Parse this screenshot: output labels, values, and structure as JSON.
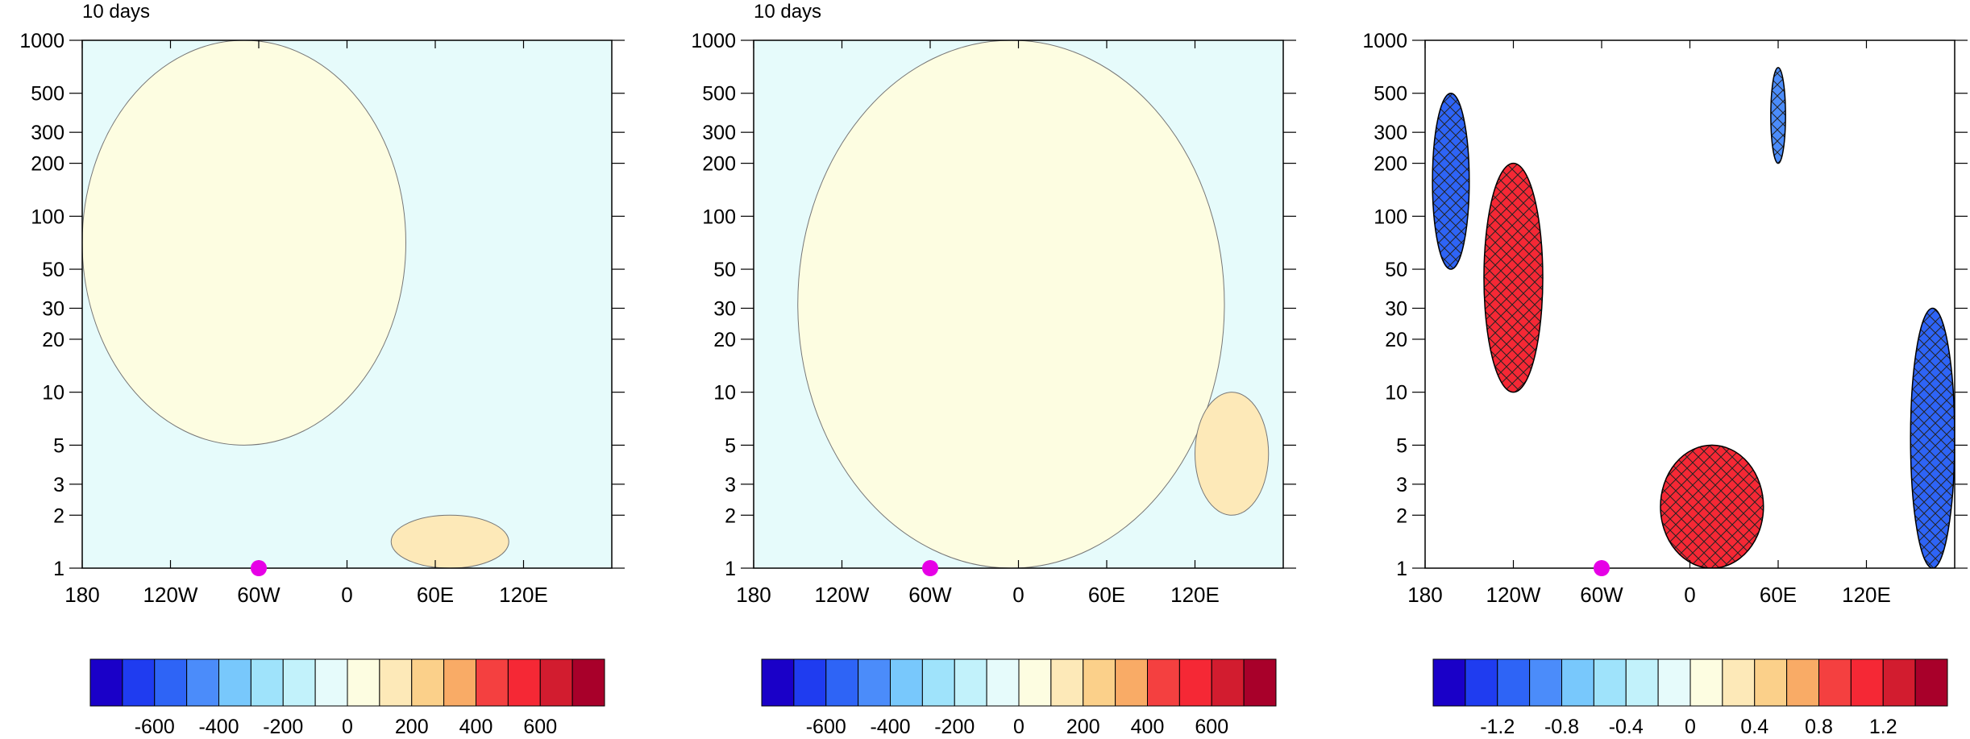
{
  "colors": {
    "levels": [
      "#1a00c8",
      "#1f3cf0",
      "#2e64f6",
      "#4b8cfa",
      "#78c8fc",
      "#9fe3fb",
      "#c2f2fb",
      "#e6fbfb",
      "#fdfde1",
      "#fde9b8",
      "#fbd08a",
      "#f9ab66",
      "#f44040",
      "#f52835",
      "#d21c2f",
      "#a8002a"
    ],
    "marker": "#e600e6",
    "contour": "#777777"
  },
  "chart_data": [
    {
      "type": "heatmap",
      "title": "10 days",
      "xticks": [
        "180",
        "120W",
        "60W",
        "0",
        "60E",
        "120E"
      ],
      "yticks": [
        "1",
        "2",
        "3",
        "5",
        "10",
        "20",
        "30",
        "50",
        "100",
        "200",
        "300",
        "500",
        "1000"
      ],
      "xrange": [
        -180,
        180
      ],
      "yrange": [
        1000,
        1
      ],
      "yscale": "log",
      "colorbar": {
        "levels": [
          -700,
          -600,
          -500,
          -400,
          -300,
          -200,
          -100,
          0,
          100,
          200,
          300,
          400,
          500,
          600,
          700
        ],
        "labels": [
          "-600",
          "-400",
          "-200",
          "0",
          "200",
          "400",
          "600"
        ]
      },
      "marker": {
        "lon": -60,
        "pressure": 1000
      },
      "regions": [
        {
          "value": -50,
          "sign": "negative",
          "lon": [
            -180,
            180
          ],
          "p": [
            1000,
            1
          ]
        },
        {
          "value": 50,
          "sign": "positive",
          "lon": [
            -180,
            40
          ],
          "p": [
            1000,
            5
          ]
        },
        {
          "value": 150,
          "sign": "positive",
          "lon": [
            30,
            110
          ],
          "p": [
            2,
            1
          ]
        }
      ]
    },
    {
      "type": "heatmap",
      "title": "10 days",
      "xticks": [
        "180",
        "120W",
        "60W",
        "0",
        "60E",
        "120E"
      ],
      "yticks": [
        "1",
        "2",
        "3",
        "5",
        "10",
        "20",
        "30",
        "50",
        "100",
        "200",
        "300",
        "500",
        "1000"
      ],
      "xrange": [
        -180,
        180
      ],
      "yrange": [
        1000,
        1
      ],
      "yscale": "log",
      "colorbar": {
        "levels": [
          -700,
          -600,
          -500,
          -400,
          -300,
          -200,
          -100,
          0,
          100,
          200,
          300,
          400,
          500,
          600,
          700
        ],
        "labels": [
          "-600",
          "-400",
          "-200",
          "0",
          "200",
          "400",
          "600"
        ]
      },
      "marker": {
        "lon": -60,
        "pressure": 1000
      },
      "regions": [
        {
          "value": -50,
          "sign": "negative",
          "lon": [
            -180,
            180
          ],
          "p": [
            1000,
            1
          ]
        },
        {
          "value": 50,
          "sign": "positive",
          "lon": [
            -150,
            140
          ],
          "p": [
            1000,
            1
          ]
        },
        {
          "value": 150,
          "sign": "positive",
          "lon": [
            120,
            170
          ],
          "p": [
            10,
            2
          ]
        }
      ]
    },
    {
      "type": "heatmap",
      "title": "",
      "xticks": [
        "180",
        "120W",
        "60W",
        "0",
        "60E",
        "120E"
      ],
      "yticks": [
        "1",
        "2",
        "3",
        "5",
        "10",
        "20",
        "30",
        "50",
        "100",
        "200",
        "300",
        "500",
        "1000"
      ],
      "xrange": [
        -180,
        180
      ],
      "yrange": [
        1000,
        1
      ],
      "yscale": "log",
      "colorbar": {
        "levels": [
          -1.4,
          -1.2,
          -1.0,
          -0.8,
          -0.6,
          -0.4,
          -0.2,
          0,
          0.2,
          0.4,
          0.6,
          0.8,
          1.0,
          1.2,
          1.4
        ],
        "labels": [
          "-1.2",
          "-0.8",
          "-0.4",
          "0",
          "0.4",
          "0.8",
          "1.2"
        ]
      },
      "marker": {
        "lon": -60,
        "pressure": 1000
      },
      "hatched": "significant regions",
      "regions": [
        {
          "value": 1.1,
          "sign": "positive",
          "lon": [
            -140,
            -100
          ],
          "p": [
            200,
            10
          ],
          "hatched": true
        },
        {
          "value": 1.1,
          "sign": "positive",
          "lon": [
            -20,
            50
          ],
          "p": [
            5,
            1
          ],
          "hatched": true
        },
        {
          "value": -1.1,
          "sign": "negative",
          "lon": [
            150,
            180
          ],
          "p": [
            30,
            1
          ],
          "hatched": true
        },
        {
          "value": -1.0,
          "sign": "negative",
          "lon": [
            -175,
            -150
          ],
          "p": [
            500,
            50
          ],
          "hatched": true
        },
        {
          "value": -0.9,
          "sign": "negative",
          "lon": [
            55,
            65
          ],
          "p": [
            700,
            200
          ],
          "hatched": true
        }
      ]
    }
  ]
}
